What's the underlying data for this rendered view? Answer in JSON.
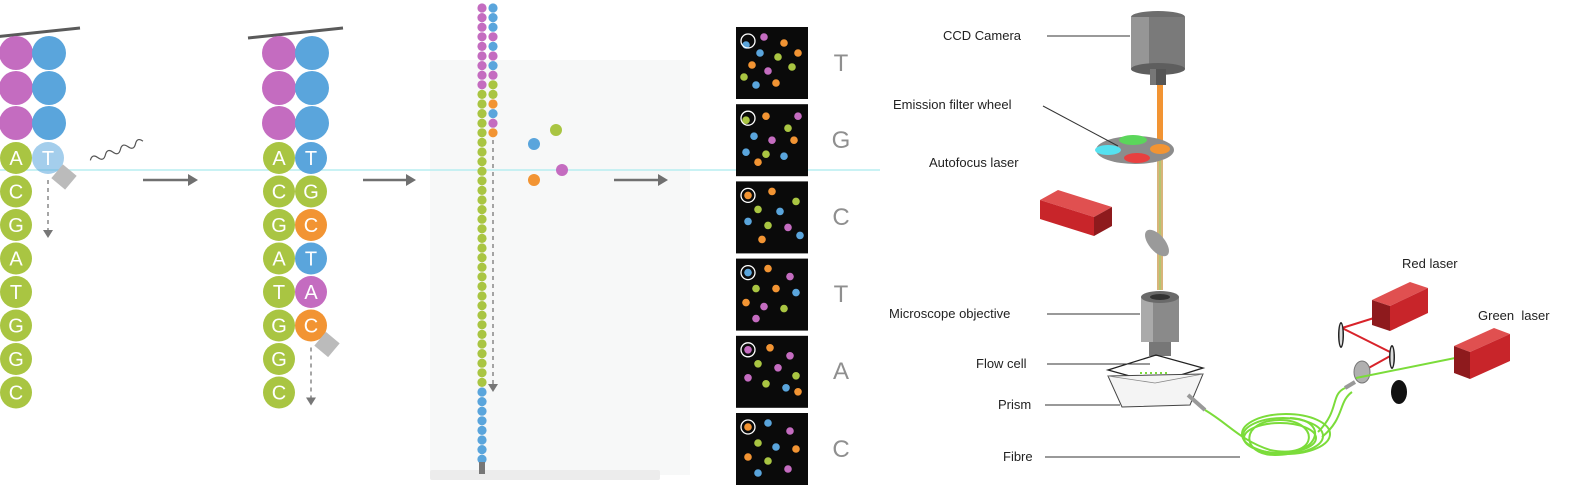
{
  "colors": {
    "A": "#c46cc0",
    "T": "#5aa5dc",
    "G": "#a9c542",
    "C": "#f29433",
    "strand_top": "#5a5a5a",
    "arrow": "#707070",
    "cyan_line": "#b7eef0",
    "laser_red": "#c8252a",
    "fibre_green": "#7bdc3a"
  },
  "panel1": {
    "template": [
      "A",
      "C",
      "G",
      "A",
      "T",
      "G",
      "G",
      "C"
    ],
    "incorporated": "T",
    "icons": [
      "wavy-light-icon",
      "blocking-group-icon",
      "dashed-arrow-down-icon"
    ]
  },
  "panel2": {
    "template": [
      "A",
      "C",
      "G",
      "A",
      "T",
      "G",
      "G",
      "C"
    ],
    "incorporated": [
      "T",
      "G",
      "C",
      "T",
      "A",
      "C"
    ]
  },
  "panel3": {
    "free_bases": [
      "T",
      "G",
      "C",
      "A"
    ]
  },
  "panel4": {
    "calls": [
      "T",
      "G",
      "C",
      "T",
      "A",
      "C"
    ]
  },
  "instrument": {
    "labels": {
      "ccd_camera": "CCD Camera",
      "emission_filter_wheel": "Emission filter wheel",
      "autofocus_laser": "Autofocus laser",
      "microscope_objective": "Microscope objective",
      "flow_cell": "Flow cell",
      "prism": "Prism",
      "fibre": "Fibre",
      "red_laser": "Red laser",
      "green_laser": "Green  laser"
    }
  }
}
